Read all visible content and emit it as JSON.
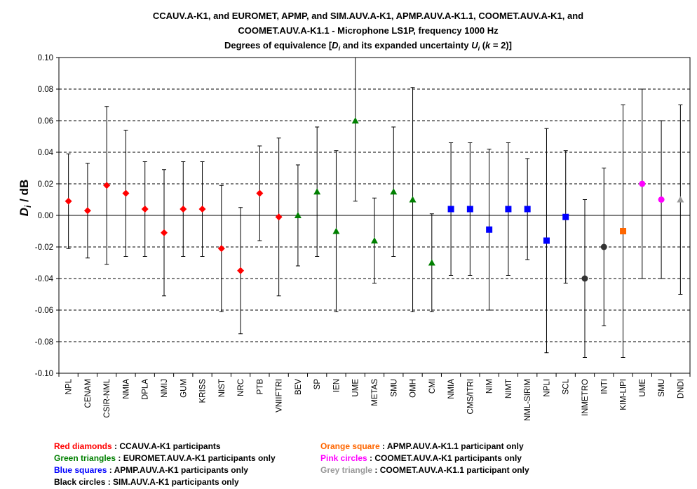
{
  "chart_data": {
    "type": "scatter",
    "title_lines": [
      "CCAUV.A-K1, and EUROMET, APMP, and SIM.AUV.A-K1, APMP.AUV.A-K1.1, COOMET.AUV.A-K1, and",
      "COOMET.AUV.A-K1.1 - Microphone LS1P, frequency 1000 Hz"
    ],
    "subtitle": {
      "prefix": "Degrees of equivalence [",
      "d_sym": "D",
      "d_sub": "i",
      "middle": " and its expanded uncertainty ",
      "u_sym": "U",
      "u_sub": "i",
      "k_open": " (",
      "k_sym": "k",
      "suffix": " = 2)]"
    },
    "ylabel": {
      "sym": "D",
      "sub": "i",
      "rest": " / dB"
    },
    "ylim": [
      -0.1,
      0.1
    ],
    "yticks": [
      "0.10",
      "0.08",
      "0.06",
      "0.04",
      "0.02",
      "0.00",
      "-0.02",
      "-0.04",
      "-0.06",
      "-0.08",
      "-0.10"
    ],
    "grid": true,
    "points": [
      {
        "label": "NPL",
        "y": 0.009,
        "err": 0.03,
        "group": "red"
      },
      {
        "label": "CENAM",
        "y": 0.003,
        "err": 0.03,
        "group": "red"
      },
      {
        "label": "CSIR-NML",
        "y": 0.019,
        "err": 0.05,
        "group": "red"
      },
      {
        "label": "NMIA",
        "y": 0.014,
        "err": 0.04,
        "group": "red"
      },
      {
        "label": "DPLA",
        "y": 0.004,
        "err": 0.03,
        "group": "red"
      },
      {
        "label": "NMIJ",
        "y": -0.011,
        "err": 0.04,
        "group": "red"
      },
      {
        "label": "GUM",
        "y": 0.004,
        "err": 0.03,
        "group": "red"
      },
      {
        "label": "KRISS",
        "y": 0.004,
        "err": 0.03,
        "group": "red"
      },
      {
        "label": "NIST",
        "y": -0.021,
        "err": 0.04,
        "group": "red"
      },
      {
        "label": "NRC",
        "y": -0.035,
        "err": 0.04,
        "group": "red"
      },
      {
        "label": "PTB",
        "y": 0.014,
        "err": 0.03,
        "group": "red"
      },
      {
        "label": "VNIIFTRI",
        "y": -0.001,
        "err": 0.05,
        "group": "red"
      },
      {
        "label": "BEV",
        "y": 0.0,
        "err": 0.032,
        "group": "green"
      },
      {
        "label": "SP",
        "y": 0.015,
        "err": 0.041,
        "group": "green"
      },
      {
        "label": "IEN",
        "y": -0.01,
        "err": 0.051,
        "group": "green"
      },
      {
        "label": "UME",
        "y": 0.06,
        "err": 0.051,
        "group": "green"
      },
      {
        "label": "METAS",
        "y": -0.016,
        "err": 0.027,
        "group": "green"
      },
      {
        "label": "SMU",
        "y": 0.015,
        "err": 0.041,
        "group": "green"
      },
      {
        "label": "OMH",
        "y": 0.01,
        "err": 0.071,
        "group": "green"
      },
      {
        "label": "CMI",
        "y": -0.03,
        "err": 0.031,
        "group": "green"
      },
      {
        "label": "NMIA",
        "y": 0.004,
        "err": 0.042,
        "group": "blue"
      },
      {
        "label": "CMS/ITRI",
        "y": 0.004,
        "err": 0.042,
        "group": "blue"
      },
      {
        "label": "NIM",
        "y": -0.009,
        "err": 0.051,
        "group": "blue"
      },
      {
        "label": "NIMT",
        "y": 0.004,
        "err": 0.042,
        "group": "blue"
      },
      {
        "label": "NML-SIRIM",
        "y": 0.004,
        "err": 0.032,
        "group": "blue"
      },
      {
        "label": "NPLI",
        "y": -0.016,
        "err": 0.071,
        "group": "blue"
      },
      {
        "label": "SCL",
        "y": -0.001,
        "err": 0.042,
        "group": "blue"
      },
      {
        "label": "INMETRO",
        "y": -0.04,
        "err": 0.05,
        "group": "black"
      },
      {
        "label": "INTI",
        "y": -0.02,
        "err": 0.05,
        "group": "black"
      },
      {
        "label": "KIM-LIPI",
        "y": -0.01,
        "err": 0.08,
        "group": "orange"
      },
      {
        "label": "UME",
        "y": 0.02,
        "err": 0.06,
        "group": "pink"
      },
      {
        "label": "SMU",
        "y": 0.01,
        "err": 0.05,
        "group": "pink"
      },
      {
        "label": "DNDI",
        "y": 0.01,
        "err": 0.06,
        "group": "grey"
      }
    ],
    "groups": {
      "red": {
        "marker": "diamond",
        "color": "#ff0000"
      },
      "green": {
        "marker": "triangle",
        "color": "#008000"
      },
      "blue": {
        "marker": "square",
        "color": "#0000ff"
      },
      "black": {
        "marker": "circle",
        "color": "#333333"
      },
      "orange": {
        "marker": "square",
        "color": "#ff6600"
      },
      "pink": {
        "marker": "circle",
        "color": "#ff00ff"
      },
      "grey": {
        "marker": "triangle",
        "color": "#999999"
      }
    },
    "legend": [
      {
        "name": "Red diamonds",
        "desc": " : CCAUV.A-K1 participants",
        "color": "#ff0000"
      },
      {
        "name": "Green triangles",
        "desc": " : EUROMET.AUV.A-K1 participants only",
        "color": "#008000"
      },
      {
        "name": "Blue squares",
        "desc": " : APMP.AUV.A-K1 participants only",
        "color": "#0000ff"
      },
      {
        "name": "Black circles",
        "desc": " : SIM.AUV.A-K1 participants only",
        "color": "#000000"
      },
      {
        "name": "Orange square",
        "desc": " : APMP.AUV.A-K1.1 participant only",
        "color": "#ff6600"
      },
      {
        "name": "Pink circles",
        "desc": " : COOMET.AUV.A-K1 participants only",
        "color": "#ff00ff"
      },
      {
        "name": "Grey triangle",
        "desc": " : COOMET.AUV.A-K1.1 participant only",
        "color": "#999999"
      }
    ]
  }
}
